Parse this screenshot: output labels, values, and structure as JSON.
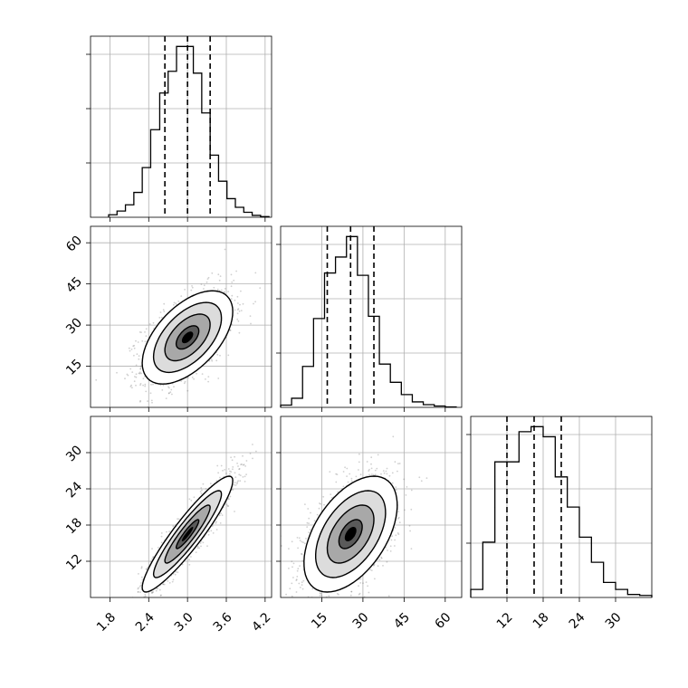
{
  "chart_data": {
    "type": "corner",
    "grid": true,
    "parameters": [
      {
        "xlim": [
          1.5,
          4.3
        ],
        "ticks": [
          "1.8",
          "2.4",
          "3.0",
          "3.6",
          "4.2"
        ],
        "tick_values": [
          1.8,
          2.4,
          3.0,
          3.6,
          4.2
        ],
        "quantile_lines": [
          2.65,
          3.0,
          3.35
        ],
        "histogram": {
          "bins": [
            1.78,
            1.91,
            2.04,
            2.17,
            2.3,
            2.43,
            2.57,
            2.7,
            2.83,
            2.96,
            3.09,
            3.22,
            3.35,
            3.48,
            3.61,
            3.74,
            3.87,
            4.0,
            4.13,
            4.26
          ],
          "counts": [
            4,
            10,
            20,
            40,
            80,
            141,
            200,
            235,
            275,
            275,
            232,
            168,
            100,
            58,
            30,
            16,
            8,
            3,
            1
          ]
        }
      },
      {
        "xlim": [
          0,
          66
        ],
        "ticks": [
          "15",
          "30",
          "45",
          "60"
        ],
        "tick_values": [
          15,
          30,
          45,
          60
        ],
        "quantile_lines": [
          17,
          25.5,
          34
        ],
        "histogram": {
          "bins": [
            0,
            4,
            8,
            12,
            16,
            20,
            24,
            28,
            32,
            36,
            40,
            44,
            48,
            52,
            56,
            60,
            64
          ],
          "counts": [
            5,
            20,
            90,
            195,
            295,
            330,
            375,
            290,
            200,
            95,
            55,
            28,
            12,
            6,
            3,
            1
          ]
        }
      },
      {
        "xlim": [
          6,
          36
        ],
        "ticks": [
          "12",
          "18",
          "24",
          "30"
        ],
        "tick_values": [
          12,
          18,
          24,
          30
        ],
        "quantile_lines": [
          12,
          16.5,
          21
        ],
        "histogram": {
          "bins": [
            6,
            8,
            10,
            12,
            14,
            16,
            18,
            20,
            22,
            24,
            26,
            28,
            30,
            32,
            34,
            36
          ],
          "counts": [
            8,
            55,
            135,
            135,
            165,
            170,
            160,
            120,
            90,
            60,
            35,
            15,
            8,
            3,
            2
          ]
        }
      }
    ],
    "pairs": [
      {
        "x": 0,
        "y": 1,
        "mean": [
          3.0,
          25.5
        ],
        "sd": [
          0.35,
          8.5
        ],
        "rho": 0.55,
        "ylim": [
          0,
          66
        ],
        "yticks": [
          "15",
          "30",
          "45",
          "60"
        ],
        "ytick_values": [
          15,
          30,
          45,
          60
        ]
      },
      {
        "x": 0,
        "y": 2,
        "mean": [
          3.0,
          16.5
        ],
        "sd": [
          0.35,
          4.8
        ],
        "rho": 0.92,
        "ylim": [
          6,
          36
        ],
        "yticks": [
          "12",
          "18",
          "24",
          "30"
        ],
        "ytick_values": [
          12,
          18,
          24,
          30
        ]
      },
      {
        "x": 1,
        "y": 2,
        "mean": [
          25.5,
          16.5
        ],
        "sd": [
          8.5,
          4.8
        ],
        "rho": 0.5,
        "ylim": [
          6,
          36
        ],
        "yticks": [
          "12",
          "18",
          "24",
          "30"
        ],
        "ytick_values": [
          12,
          18,
          24,
          30
        ]
      }
    ],
    "contour_levels_sigma": [
      0.5,
      1.0,
      1.5,
      2.0
    ]
  }
}
